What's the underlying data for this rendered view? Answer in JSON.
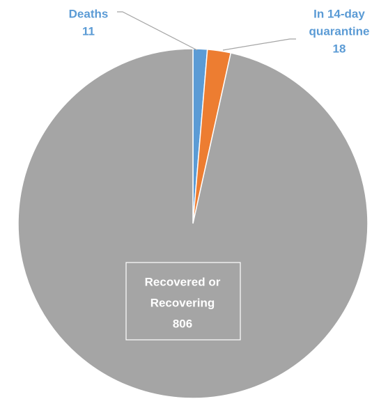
{
  "chart_data": {
    "type": "pie",
    "slices": [
      {
        "name": "Deaths",
        "value": 11,
        "color": "#5B9BD5",
        "label_color": "#5B9BD5",
        "label_lines": [
          "Deaths"
        ],
        "value_text": "11"
      },
      {
        "name": "In 14-day quarantine",
        "value": 18,
        "color": "#ED7D31",
        "label_color": "#5B9BD5",
        "label_lines": [
          "In 14-day",
          "quarantine"
        ],
        "value_text": "18"
      },
      {
        "name": "Recovered or Recovering",
        "value": 806,
        "color": "#A5A5A5",
        "label_color": "#FFFFFF",
        "label_lines": [
          "Recovered or",
          "Recovering"
        ],
        "value_text": "806"
      }
    ],
    "start_angle_degrees": 0,
    "direction": "clockwise",
    "legend": "none",
    "data_labels": true
  }
}
